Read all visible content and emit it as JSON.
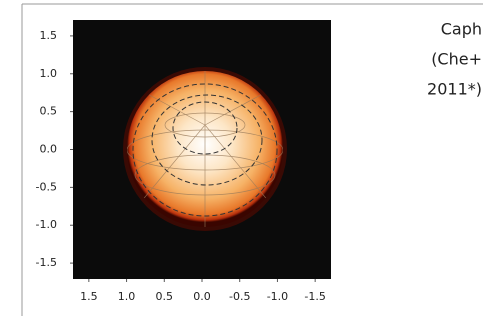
{
  "plot": {
    "xlim": [
      1.71,
      -1.71
    ],
    "ylim": [
      -1.71,
      1.71
    ],
    "xticks": [
      {
        "value": 1.5,
        "label": "1.5"
      },
      {
        "value": 1,
        "label": "1.0"
      },
      {
        "value": 0.5,
        "label": "0.5"
      },
      {
        "value": 0,
        "label": "0.0"
      },
      {
        "value": -0.5,
        "label": "-0.5"
      },
      {
        "value": -1,
        "label": "-1.0"
      },
      {
        "value": -1.5,
        "label": "-1.5"
      }
    ],
    "yticks": [
      {
        "value": 1.5,
        "label": "1.5"
      },
      {
        "value": 1,
        "label": "1.0"
      },
      {
        "value": 0.5,
        "label": "0.5"
      },
      {
        "value": 0,
        "label": "0.0"
      },
      {
        "value": -0.5,
        "label": "-0.5"
      },
      {
        "value": -1,
        "label": "-1.0"
      },
      {
        "value": -1.5,
        "label": "-1.5"
      }
    ]
  },
  "caption": {
    "lines": [
      "Caph",
      "(Che+",
      "2011*)"
    ]
  }
}
